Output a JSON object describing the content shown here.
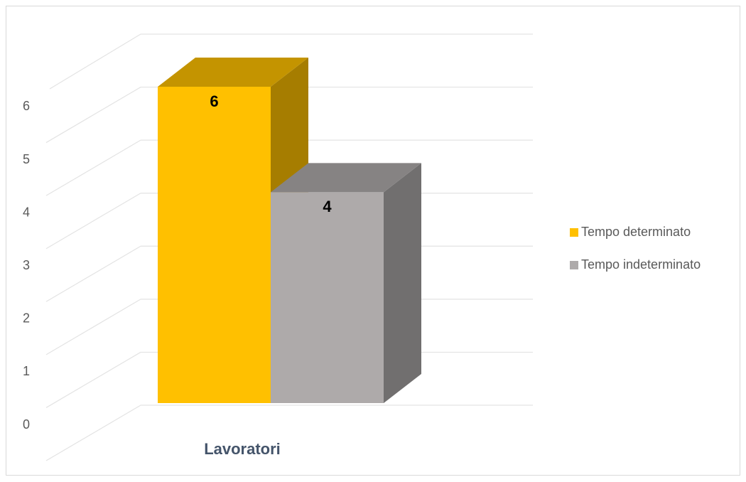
{
  "chart_data": {
    "type": "bar3d",
    "categories": [
      "Lavoratori"
    ],
    "series": [
      {
        "name": "Tempo determinato",
        "color": "#ffc000",
        "values": [
          6
        ]
      },
      {
        "name": "Tempo indeterminato",
        "color": "#aeaaaa",
        "values": [
          4
        ]
      }
    ],
    "ylim": [
      0,
      7
    ],
    "yticks": [
      0,
      1,
      2,
      3,
      4,
      5,
      6
    ],
    "grid": true,
    "legend": "right"
  }
}
